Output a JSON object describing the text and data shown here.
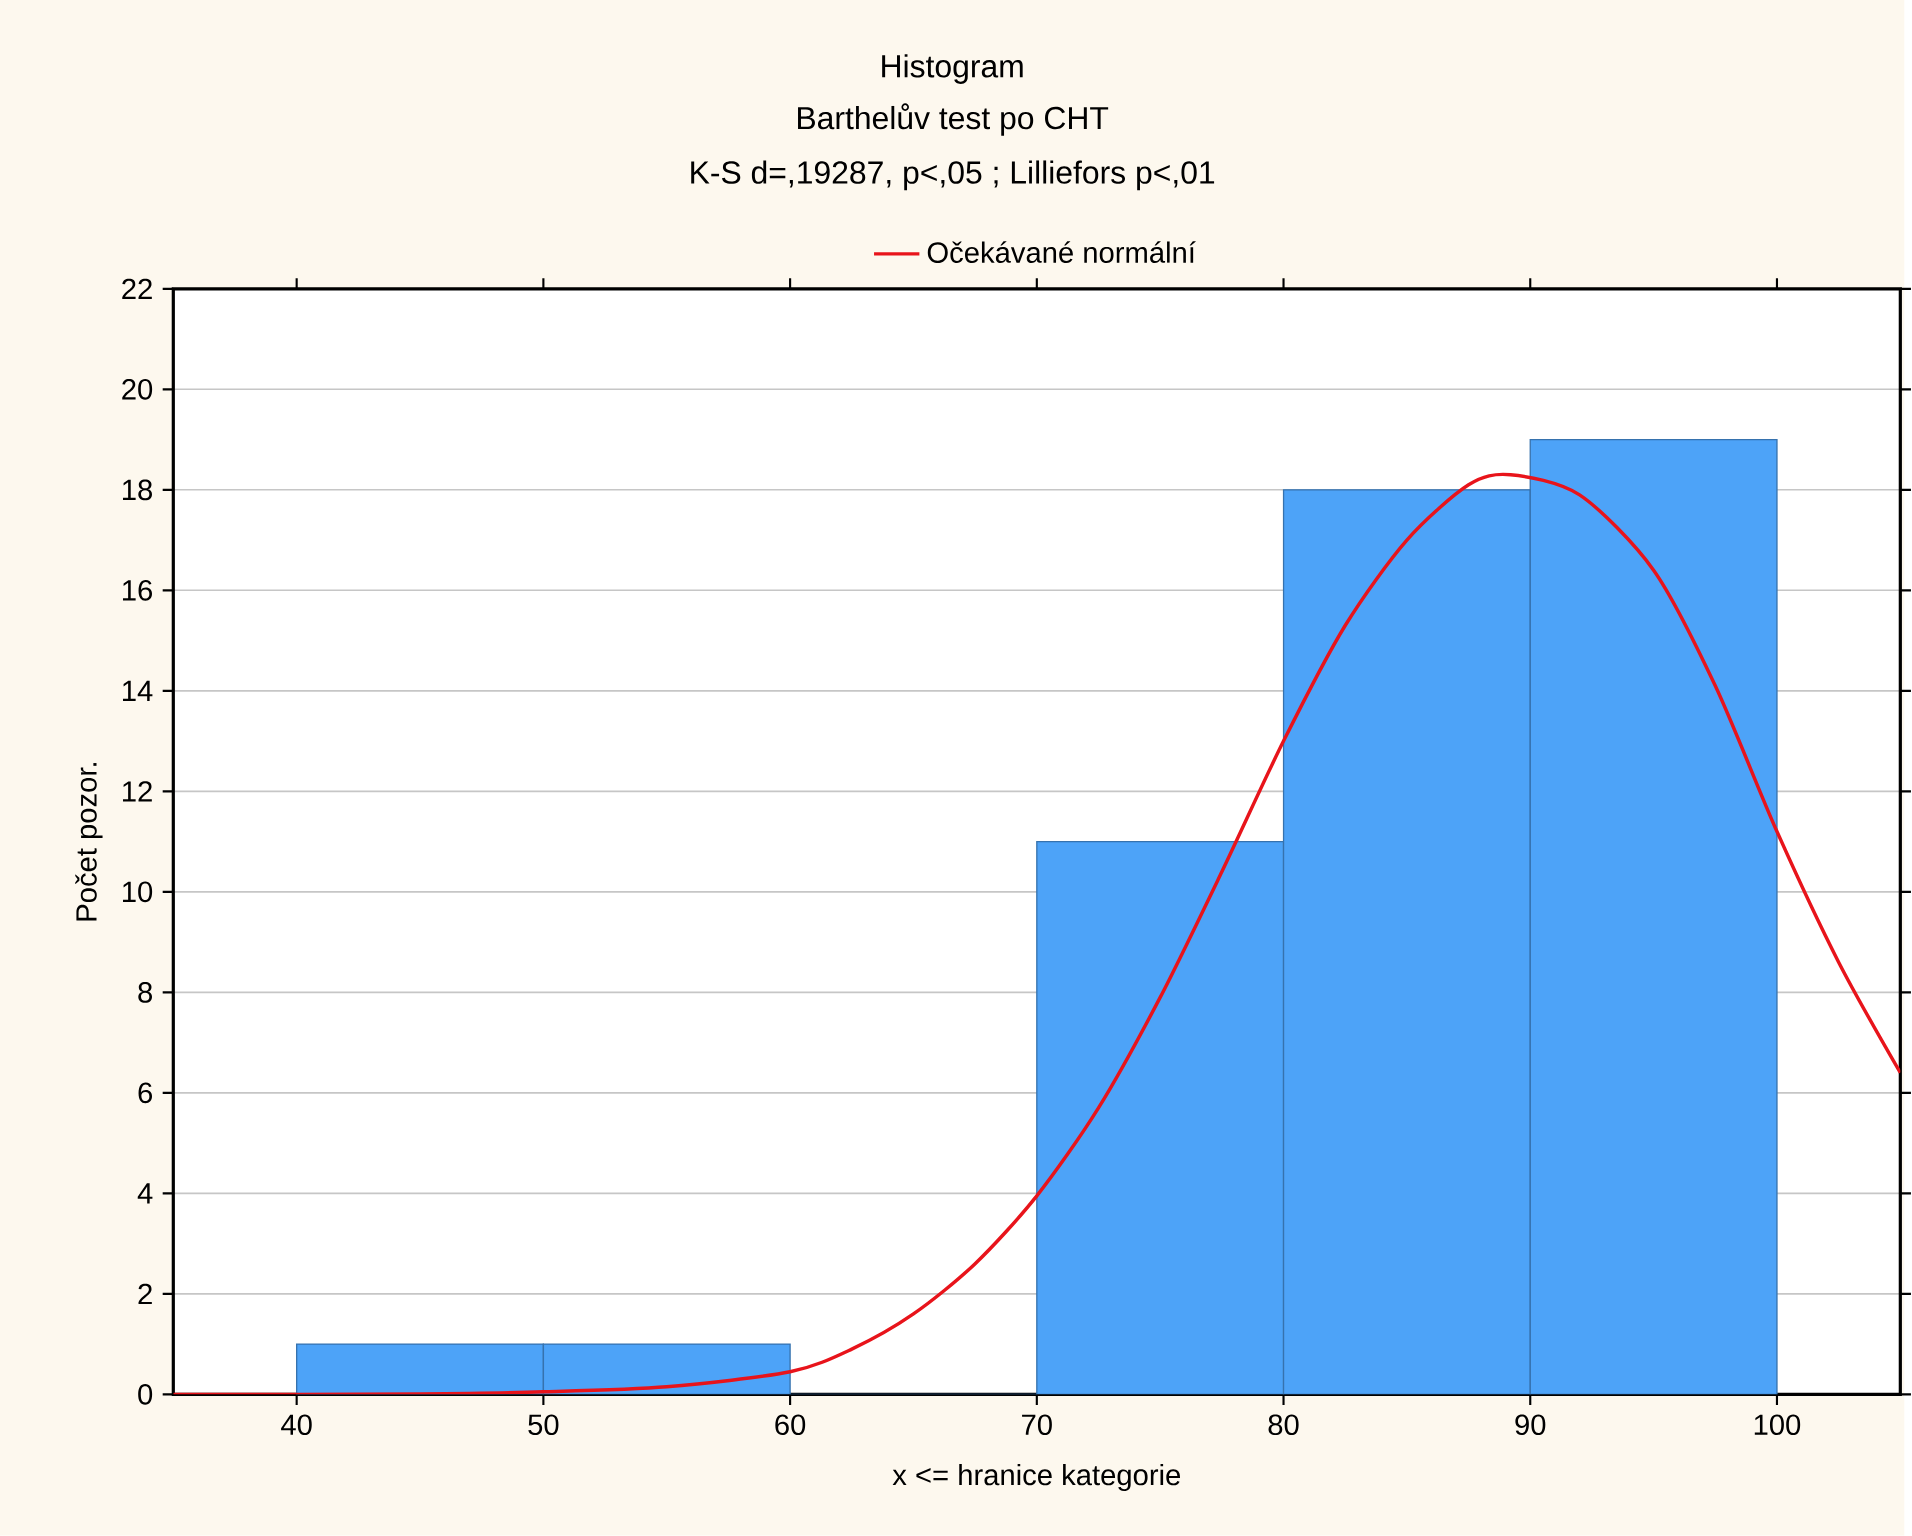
{
  "chart_data": {
    "type": "histogram",
    "title": "Histogram",
    "subtitle": "Barthelův test po CHT",
    "annotations": [
      "K-S d=,19287, p<,05 ; Lilliefors p<,01"
    ],
    "xlabel": "x <= hranice kategorie",
    "ylabel": "Počet pozor.",
    "bins": [
      40,
      50,
      60,
      70,
      80,
      90,
      100
    ],
    "values": [
      1,
      1,
      0,
      11,
      18,
      19
    ],
    "color": "#4da3f8",
    "series": [
      {
        "type": "line",
        "name": "Očekávané normální",
        "color": "#e8141b",
        "x": [
          35,
          40,
          45,
          50,
          55,
          60,
          62.5,
          65,
          67.5,
          70,
          72.5,
          75,
          77.5,
          80,
          82.5,
          85,
          87.5,
          89.2,
          92,
          95,
          97.5,
          100,
          102.5,
          105
        ],
        "values": [
          0,
          0,
          0.01,
          0.05,
          0.15,
          0.45,
          0.9,
          1.6,
          2.6,
          3.95,
          5.7,
          7.9,
          10.4,
          13.0,
          15.3,
          17.0,
          18.1,
          18.3,
          17.9,
          16.4,
          14.1,
          11.2,
          8.6,
          6.4
        ]
      }
    ],
    "xlim": [
      35,
      105
    ],
    "xticks": [
      40,
      50,
      60,
      70,
      80,
      90,
      100
    ],
    "ylim": [
      0,
      22
    ],
    "yticks": [
      0,
      2,
      4,
      6,
      8,
      10,
      12,
      14,
      16,
      18,
      20,
      22
    ],
    "grid": "y",
    "legend": "top"
  }
}
